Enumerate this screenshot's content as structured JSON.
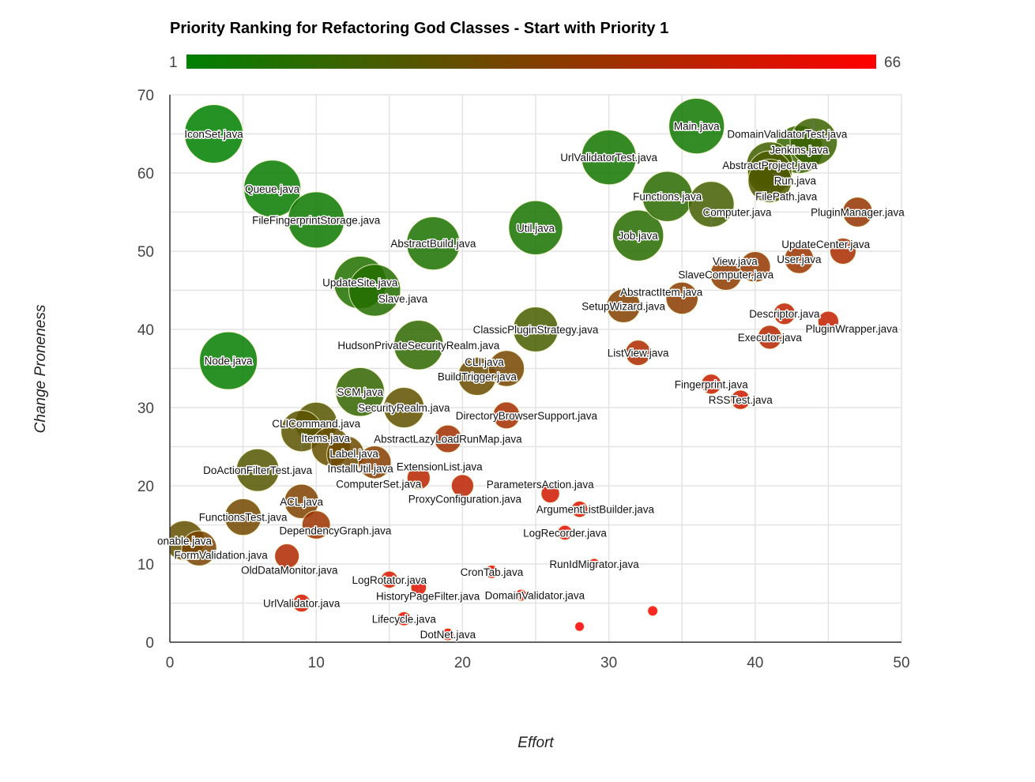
{
  "chart_data": {
    "type": "bubble",
    "title": "Priority Ranking for Refactoring God Classes - Start with Priority 1",
    "xlabel": "Effort",
    "ylabel": "Change Proneness",
    "xlim": [
      0,
      50
    ],
    "ylim": [
      0,
      70
    ],
    "xticks": [
      0,
      10,
      20,
      30,
      40,
      50
    ],
    "yticks": [
      0,
      10,
      20,
      30,
      40,
      50,
      60,
      70
    ],
    "grid": true,
    "colorbar": {
      "min_label": "1",
      "max_label": "66",
      "min": 1,
      "max": 66,
      "colors": [
        "#008000",
        "#804000",
        "#ff0000"
      ],
      "placement": "top"
    },
    "points": [
      {
        "label": "IconSet.java",
        "x": 3,
        "y": 65,
        "priority": 1
      },
      {
        "label": "Node.java",
        "x": 4,
        "y": 36,
        "priority": 2
      },
      {
        "label": "Queue.java",
        "x": 7,
        "y": 58,
        "priority": 3
      },
      {
        "label": "FileFingerprintStorage.java",
        "x": 10,
        "y": 54,
        "priority": 4
      },
      {
        "label": "Main.java",
        "x": 36,
        "y": 66,
        "priority": 5
      },
      {
        "label": "UrlValidatorTest.java",
        "x": 30,
        "y": 62,
        "priority": 6
      },
      {
        "label": "Util.java",
        "x": 25,
        "y": 53,
        "priority": 7
      },
      {
        "label": "AbstractBuild.java",
        "x": 18,
        "y": 51,
        "priority": 8
      },
      {
        "label": "UpdateSite.java",
        "x": 13,
        "y": 46,
        "priority": 9
      },
      {
        "label": "Slave.java",
        "x": 14,
        "y": 45,
        "priority": 10
      },
      {
        "label": "Job.java",
        "x": 32,
        "y": 52,
        "priority": 11
      },
      {
        "label": "Functions.java",
        "x": 34,
        "y": 57,
        "priority": 12
      },
      {
        "label": "HudsonPrivateSecurityRealm.java",
        "x": 17,
        "y": 38,
        "priority": 13
      },
      {
        "label": "SCM.java",
        "x": 13,
        "y": 32,
        "priority": 14
      },
      {
        "label": "Jenkins.java",
        "x": 43,
        "y": 63,
        "priority": 15
      },
      {
        "label": "DomainValidatorTest.java",
        "x": 44,
        "y": 64,
        "priority": 16
      },
      {
        "label": "AbstractProject.java",
        "x": 41,
        "y": 61,
        "priority": 17
      },
      {
        "label": "Computer.java",
        "x": 37,
        "y": 56,
        "priority": 18
      },
      {
        "label": "ClassicPluginStrategy.java",
        "x": 25,
        "y": 40,
        "priority": 19
      },
      {
        "label": "Run.java",
        "x": 41,
        "y": 60,
        "priority": 20
      },
      {
        "label": "FilePath.java",
        "x": 41,
        "y": 59,
        "priority": 21
      },
      {
        "label": "DoActionFilterTest.java",
        "x": 6,
        "y": 22,
        "priority": 22
      },
      {
        "label": "CLICommand.java",
        "x": 10,
        "y": 28,
        "priority": 23
      },
      {
        "label": "Items.java",
        "x": 9,
        "y": 27,
        "priority": 24
      },
      {
        "label": "SecurityRealm.java",
        "x": 16,
        "y": 30,
        "priority": 25
      },
      {
        "label": "onable.java",
        "x": 1,
        "y": 13,
        "priority": 26
      },
      {
        "label": "Label.java",
        "x": 11,
        "y": 25,
        "priority": 27
      },
      {
        "label": "BuildTrigger.java",
        "x": 21,
        "y": 34,
        "priority": 28
      },
      {
        "label": "InstallUtil.java",
        "x": 12,
        "y": 24,
        "priority": 29
      },
      {
        "label": "FunctionsTest.java",
        "x": 5,
        "y": 16,
        "priority": 30
      },
      {
        "label": "CLI.java",
        "x": 23,
        "y": 35,
        "priority": 31
      },
      {
        "label": "FormValidation.java",
        "x": 2,
        "y": 12,
        "priority": 32
      },
      {
        "label": "ACL.java",
        "x": 9,
        "y": 18,
        "priority": 33
      },
      {
        "label": "SetupWizard.java",
        "x": 31,
        "y": 43,
        "priority": 34
      },
      {
        "label": "ComputerSet.java",
        "x": 14,
        "y": 23,
        "priority": 35
      },
      {
        "label": "AbstractItem.java",
        "x": 35,
        "y": 44,
        "priority": 36
      },
      {
        "label": "SlaveComputer.java",
        "x": 38,
        "y": 47,
        "priority": 37
      },
      {
        "label": "View.java",
        "x": 40,
        "y": 48,
        "priority": 38
      },
      {
        "label": "PluginManager.java",
        "x": 47,
        "y": 55,
        "priority": 39
      },
      {
        "label": "User.java",
        "x": 43,
        "y": 49,
        "priority": 40
      },
      {
        "label": "DependencyGraph.java",
        "x": 10,
        "y": 15,
        "priority": 41
      },
      {
        "label": "AbstractLazyLoadRunMap.java",
        "x": 19,
        "y": 26,
        "priority": 42
      },
      {
        "label": "DirectoryBrowserSupport.java",
        "x": 23,
        "y": 29,
        "priority": 43
      },
      {
        "label": "UpdateCenter.java",
        "x": 46,
        "y": 50,
        "priority": 44
      },
      {
        "label": "ListView.java",
        "x": 32,
        "y": 37,
        "priority": 45
      },
      {
        "label": "OldDataMonitor.java",
        "x": 8,
        "y": 11,
        "priority": 46
      },
      {
        "label": "Executor.java",
        "x": 41,
        "y": 39,
        "priority": 47
      },
      {
        "label": "ExtensionList.java",
        "x": 17,
        "y": 21,
        "priority": 48
      },
      {
        "label": "ProxyConfiguration.java",
        "x": 20,
        "y": 20,
        "priority": 49
      },
      {
        "label": "Descriptor.java",
        "x": 42,
        "y": 42,
        "priority": 50
      },
      {
        "label": "PluginWrapper.java",
        "x": 45,
        "y": 41,
        "priority": 51
      },
      {
        "label": "Fingerprint.java",
        "x": 37,
        "y": 33,
        "priority": 52
      },
      {
        "label": "RSSTest.java",
        "x": 39,
        "y": 31,
        "priority": 53
      },
      {
        "label": "ParametersAction.java",
        "x": 26,
        "y": 19,
        "priority": 54
      },
      {
        "label": "UrlValidator.java",
        "x": 9,
        "y": 5,
        "priority": 55
      },
      {
        "label": "LogRotator.java",
        "x": 15,
        "y": 8,
        "priority": 56
      },
      {
        "label": "ArgumentListBuilder.java",
        "x": 28,
        "y": 17,
        "priority": 57
      },
      {
        "label": "HistoryPageFilter.java",
        "x": 17,
        "y": 7,
        "priority": 58
      },
      {
        "label": "LogRecorder.java",
        "x": 27,
        "y": 14,
        "priority": 59
      },
      {
        "label": "Lifecycle.java",
        "x": 16,
        "y": 3,
        "priority": 60
      },
      {
        "label": "CronTab.java",
        "x": 22,
        "y": 9,
        "priority": 61
      },
      {
        "label": "DotNet.java",
        "x": 19,
        "y": 1,
        "priority": 62
      },
      {
        "label": "DomainValidator.java",
        "x": 24,
        "y": 6,
        "priority": 63
      },
      {
        "label": "RunIdMigrator.java",
        "x": 29,
        "y": 10,
        "priority": 64
      },
      {
        "label": "",
        "x": 33,
        "y": 4,
        "priority": 65
      },
      {
        "label": "",
        "x": 28,
        "y": 2,
        "priority": 66
      }
    ]
  }
}
